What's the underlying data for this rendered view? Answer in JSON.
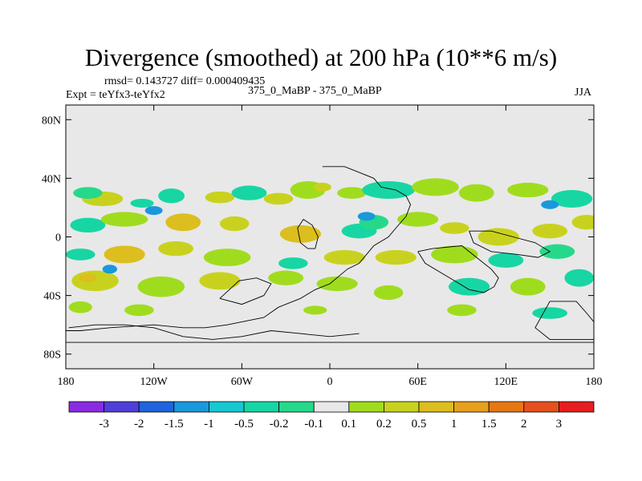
{
  "chart_data": {
    "type": "heatmap",
    "title": "Divergence (smoothed) at 200 hPa (10**6 m/s)",
    "stats_text": "rmsd= 0.143727 diff= 0.000409435",
    "left_subtitle": "Expt = teYfx3-teYfx2",
    "center_subtitle": "375_0_MaBP - 375_0_MaBP",
    "right_subtitle": "JJA",
    "xlim": [
      -180,
      180
    ],
    "ylim": [
      -90,
      90
    ],
    "x_ticks": [
      {
        "value": -180,
        "label": "180"
      },
      {
        "value": -120,
        "label": "120W"
      },
      {
        "value": -60,
        "label": "60W"
      },
      {
        "value": 0,
        "label": "0"
      },
      {
        "value": 60,
        "label": "60E"
      },
      {
        "value": 120,
        "label": "120E"
      },
      {
        "value": 180,
        "label": "180"
      }
    ],
    "y_ticks": [
      {
        "value": 80,
        "label": "80N"
      },
      {
        "value": 40,
        "label": "40N"
      },
      {
        "value": 0,
        "label": "0"
      },
      {
        "value": -40,
        "label": "40S"
      },
      {
        "value": -80,
        "label": "80S"
      }
    ],
    "colorbar": {
      "colors": [
        "#8a2be2",
        "#4f3fd8",
        "#1e64dc",
        "#1a98dc",
        "#16c8d2",
        "#17d6a4",
        "#26d98a",
        "#e8e8e8",
        "#a0dc1e",
        "#c8d21e",
        "#dcbe1e",
        "#e6a01e",
        "#e67814",
        "#e6501e",
        "#e61e1e"
      ],
      "labels": [
        "-3",
        "-2",
        "-1.5",
        "-1",
        "-0.5",
        "-0.2",
        "-0.1",
        "0.1",
        "0.2",
        "0.5",
        "1",
        "1.5",
        "2",
        "3"
      ]
    },
    "features": [
      {
        "lon": -155,
        "lat": 26,
        "rx": 14,
        "ry": 5,
        "level": 9
      },
      {
        "lon": -128,
        "lat": 23,
        "rx": 8,
        "ry": 3,
        "level": 5
      },
      {
        "lon": -165,
        "lat": 30,
        "rx": 10,
        "ry": 4,
        "level": 6
      },
      {
        "lon": -108,
        "lat": 28,
        "rx": 9,
        "ry": 5,
        "level": 5
      },
      {
        "lon": -75,
        "lat": 27,
        "rx": 10,
        "ry": 4,
        "level": 9
      },
      {
        "lon": -55,
        "lat": 30,
        "rx": 12,
        "ry": 5,
        "level": 5
      },
      {
        "lon": -35,
        "lat": 26,
        "rx": 10,
        "ry": 4,
        "level": 9
      },
      {
        "lon": -15,
        "lat": 32,
        "rx": 12,
        "ry": 6,
        "level": 8
      },
      {
        "lon": -5,
        "lat": 34,
        "rx": 6,
        "ry": 3,
        "level": 9
      },
      {
        "lon": 15,
        "lat": 30,
        "rx": 10,
        "ry": 4,
        "level": 8
      },
      {
        "lon": 40,
        "lat": 32,
        "rx": 18,
        "ry": 6,
        "level": 5
      },
      {
        "lon": 72,
        "lat": 34,
        "rx": 16,
        "ry": 6,
        "level": 8
      },
      {
        "lon": 100,
        "lat": 30,
        "rx": 12,
        "ry": 6,
        "level": 8
      },
      {
        "lon": 135,
        "lat": 32,
        "rx": 14,
        "ry": 5,
        "level": 8
      },
      {
        "lon": 165,
        "lat": 26,
        "rx": 14,
        "ry": 6,
        "level": 5
      },
      {
        "lon": -165,
        "lat": 8,
        "rx": 12,
        "ry": 5,
        "level": 5
      },
      {
        "lon": -140,
        "lat": 12,
        "rx": 16,
        "ry": 5,
        "level": 8
      },
      {
        "lon": -100,
        "lat": 10,
        "rx": 12,
        "ry": 6,
        "level": 10
      },
      {
        "lon": -65,
        "lat": 9,
        "rx": 10,
        "ry": 5,
        "level": 9
      },
      {
        "lon": -20,
        "lat": 2,
        "rx": 14,
        "ry": 6,
        "level": 10
      },
      {
        "lon": 20,
        "lat": 4,
        "rx": 12,
        "ry": 5,
        "level": 5
      },
      {
        "lon": 30,
        "lat": 10,
        "rx": 10,
        "ry": 5,
        "level": 6
      },
      {
        "lon": 60,
        "lat": 12,
        "rx": 14,
        "ry": 5,
        "level": 8
      },
      {
        "lon": 85,
        "lat": 6,
        "rx": 10,
        "ry": 4,
        "level": 9
      },
      {
        "lon": 115,
        "lat": 0,
        "rx": 14,
        "ry": 6,
        "level": 9
      },
      {
        "lon": 150,
        "lat": 4,
        "rx": 12,
        "ry": 5,
        "level": 9
      },
      {
        "lon": 175,
        "lat": 10,
        "rx": 10,
        "ry": 5,
        "level": 9
      },
      {
        "lon": -170,
        "lat": -12,
        "rx": 10,
        "ry": 4,
        "level": 5
      },
      {
        "lon": -140,
        "lat": -12,
        "rx": 14,
        "ry": 6,
        "level": 10
      },
      {
        "lon": -105,
        "lat": -8,
        "rx": 12,
        "ry": 5,
        "level": 9
      },
      {
        "lon": -70,
        "lat": -14,
        "rx": 16,
        "ry": 6,
        "level": 8
      },
      {
        "lon": -25,
        "lat": -18,
        "rx": 10,
        "ry": 4,
        "level": 5
      },
      {
        "lon": 10,
        "lat": -14,
        "rx": 14,
        "ry": 5,
        "level": 9
      },
      {
        "lon": 45,
        "lat": -14,
        "rx": 14,
        "ry": 5,
        "level": 9
      },
      {
        "lon": 85,
        "lat": -12,
        "rx": 16,
        "ry": 6,
        "level": 8
      },
      {
        "lon": 120,
        "lat": -16,
        "rx": 12,
        "ry": 5,
        "level": 5
      },
      {
        "lon": 155,
        "lat": -10,
        "rx": 12,
        "ry": 5,
        "level": 6
      },
      {
        "lon": -160,
        "lat": -30,
        "rx": 16,
        "ry": 7,
        "level": 9
      },
      {
        "lon": -165,
        "lat": -28,
        "rx": 6,
        "ry": 3,
        "level": 10
      },
      {
        "lon": -115,
        "lat": -34,
        "rx": 16,
        "ry": 7,
        "level": 8
      },
      {
        "lon": -75,
        "lat": -30,
        "rx": 14,
        "ry": 6,
        "level": 9
      },
      {
        "lon": -30,
        "lat": -28,
        "rx": 12,
        "ry": 5,
        "level": 8
      },
      {
        "lon": 5,
        "lat": -32,
        "rx": 14,
        "ry": 5,
        "level": 8
      },
      {
        "lon": 40,
        "lat": -38,
        "rx": 10,
        "ry": 5,
        "level": 8
      },
      {
        "lon": 95,
        "lat": -34,
        "rx": 14,
        "ry": 6,
        "level": 5
      },
      {
        "lon": 135,
        "lat": -34,
        "rx": 12,
        "ry": 6,
        "level": 8
      },
      {
        "lon": 170,
        "lat": -28,
        "rx": 10,
        "ry": 6,
        "level": 5
      },
      {
        "lon": -170,
        "lat": -48,
        "rx": 8,
        "ry": 4,
        "level": 8
      },
      {
        "lon": -130,
        "lat": -50,
        "rx": 10,
        "ry": 4,
        "level": 8
      },
      {
        "lon": -10,
        "lat": -50,
        "rx": 8,
        "ry": 3,
        "level": 8
      },
      {
        "lon": 90,
        "lat": -50,
        "rx": 10,
        "ry": 4,
        "level": 8
      },
      {
        "lon": 150,
        "lat": -52,
        "rx": 12,
        "ry": 4,
        "level": 5
      },
      {
        "lon": -120,
        "lat": 18,
        "rx": 6,
        "ry": 3,
        "level": 3
      },
      {
        "lon": 150,
        "lat": 22,
        "rx": 6,
        "ry": 3,
        "level": 3
      },
      {
        "lon": 25,
        "lat": 14,
        "rx": 6,
        "ry": 3,
        "level": 3
      },
      {
        "lon": -150,
        "lat": -22,
        "rx": 5,
        "ry": 3,
        "level": 3
      }
    ],
    "outlines": [
      [
        [
          -5,
          48
        ],
        [
          10,
          48
        ],
        [
          20,
          44
        ],
        [
          30,
          40
        ],
        [
          35,
          34
        ],
        [
          45,
          32
        ],
        [
          52,
          28
        ],
        [
          55,
          22
        ],
        [
          52,
          14
        ],
        [
          45,
          6
        ],
        [
          40,
          0
        ],
        [
          30,
          -6
        ],
        [
          25,
          -12
        ],
        [
          20,
          -18
        ],
        [
          12,
          -22
        ],
        [
          0,
          -32
        ],
        [
          -10,
          -36
        ],
        [
          -20,
          -42
        ],
        [
          -35,
          -48
        ],
        [
          -45,
          -55
        ],
        [
          -70,
          -60
        ],
        [
          -85,
          -62
        ],
        [
          -100,
          -62
        ],
        [
          -120,
          -60
        ],
        [
          -150,
          -62
        ],
        [
          -170,
          -64
        ],
        [
          -180,
          -64
        ]
      ],
      [
        [
          -10,
          -8
        ],
        [
          -8,
          0
        ],
        [
          -12,
          8
        ],
        [
          -18,
          12
        ],
        [
          -22,
          6
        ],
        [
          -20,
          -4
        ],
        [
          -15,
          -8
        ],
        [
          -10,
          -8
        ]
      ],
      [
        [
          60,
          -10
        ],
        [
          70,
          -8
        ],
        [
          90,
          -6
        ],
        [
          100,
          -14
        ],
        [
          110,
          -22
        ],
        [
          115,
          -28
        ],
        [
          112,
          -34
        ],
        [
          105,
          -38
        ],
        [
          95,
          -36
        ],
        [
          85,
          -30
        ],
        [
          75,
          -24
        ],
        [
          65,
          -18
        ],
        [
          60,
          -10
        ]
      ],
      [
        [
          95,
          4
        ],
        [
          110,
          4
        ],
        [
          125,
          0
        ],
        [
          140,
          -4
        ],
        [
          150,
          -10
        ],
        [
          142,
          -14
        ],
        [
          128,
          -12
        ],
        [
          110,
          -10
        ],
        [
          98,
          -4
        ],
        [
          95,
          4
        ]
      ],
      [
        [
          -180,
          -72
        ],
        [
          -120,
          -72
        ],
        [
          -60,
          -72
        ],
        [
          0,
          -72
        ],
        [
          60,
          -72
        ],
        [
          120,
          -72
        ],
        [
          180,
          -72
        ]
      ],
      [
        [
          -75,
          -42
        ],
        [
          -60,
          -46
        ],
        [
          -45,
          -40
        ],
        [
          -40,
          -32
        ],
        [
          -50,
          -28
        ],
        [
          -62,
          -30
        ],
        [
          -75,
          -42
        ]
      ],
      [
        [
          150,
          -44
        ],
        [
          168,
          -44
        ],
        [
          175,
          -52
        ],
        [
          180,
          -58
        ],
        [
          180,
          -70
        ],
        [
          150,
          -70
        ],
        [
          140,
          -62
        ],
        [
          150,
          -44
        ]
      ],
      [
        [
          -178,
          -62
        ],
        [
          -160,
          -60
        ],
        [
          -140,
          -60
        ],
        [
          -120,
          -62
        ],
        [
          -100,
          -68
        ],
        [
          -80,
          -70
        ],
        [
          -60,
          -68
        ],
        [
          -40,
          -64
        ],
        [
          -20,
          -66
        ],
        [
          0,
          -68
        ],
        [
          20,
          -66
        ]
      ]
    ]
  }
}
